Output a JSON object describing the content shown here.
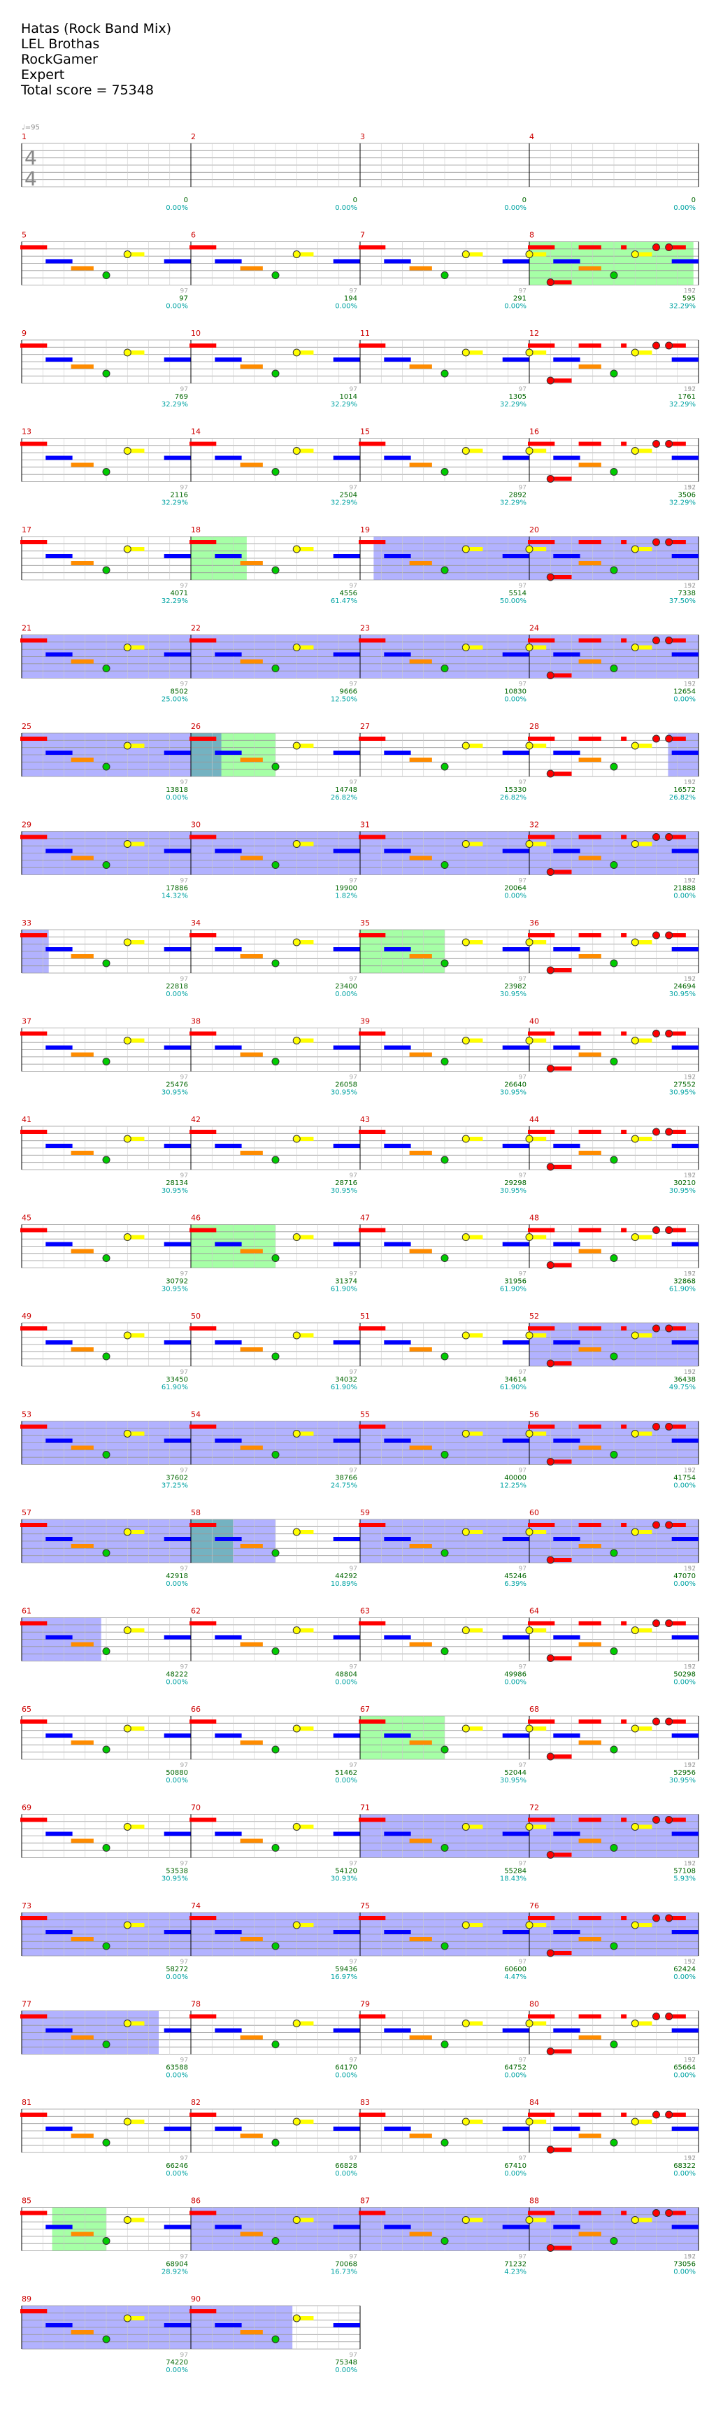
{
  "header": {
    "title": "Hatas (Rock Band Mix)",
    "artist": "LEL Brothas",
    "charter": "RockGamer",
    "difficulty": "Expert",
    "total_score_text": "Total score = 75348"
  },
  "tempo_label": "♩=95",
  "time_signature": [
    "4",
    "4"
  ],
  "label_97": "97",
  "label_152": "152",
  "colors": {
    "measure_number": "#cc0000",
    "score": "#006600",
    "percent": "#00a3a3",
    "lane_red": "#ff0000",
    "lane_yellow": "#ffff00",
    "lane_blue": "#0000ff",
    "lane_orange": "#ff8c00",
    "lane_green": "#00cc00",
    "star_power": "#00ff00",
    "overdrive": "#0000ff"
  },
  "measures": [
    {
      "n": "1",
      "score": "0",
      "pct": "0.00%",
      "sp": [],
      "od": []
    },
    {
      "n": "2",
      "score": "0",
      "pct": "0.00%",
      "sp": [],
      "od": []
    },
    {
      "n": "3",
      "score": "0",
      "pct": "0.00%",
      "sp": [],
      "od": []
    },
    {
      "n": "4",
      "score": "0",
      "pct": "0.00%",
      "sp": [],
      "od": []
    },
    {
      "n": "5",
      "score": "97",
      "pct": "0.00%",
      "sp": [],
      "od": []
    },
    {
      "n": "6",
      "score": "194",
      "pct": "0.00%",
      "sp": [],
      "od": []
    },
    {
      "n": "7",
      "score": "291",
      "pct": "0.00%",
      "sp": [],
      "od": []
    },
    {
      "n": "8",
      "score": "595",
      "pct": "32.29%",
      "sp": [
        [
          0,
          0.97
        ]
      ],
      "od": []
    },
    {
      "n": "9",
      "score": "769",
      "pct": "32.29%",
      "sp": [],
      "od": []
    },
    {
      "n": "10",
      "score": "1014",
      "pct": "32.29%",
      "sp": [],
      "od": []
    },
    {
      "n": "11",
      "score": "1305",
      "pct": "32.29%",
      "sp": [],
      "od": []
    },
    {
      "n": "12",
      "score": "1761",
      "pct": "32.29%",
      "sp": [],
      "od": []
    },
    {
      "n": "13",
      "score": "2116",
      "pct": "32.29%",
      "sp": [],
      "od": []
    },
    {
      "n": "14",
      "score": "2504",
      "pct": "32.29%",
      "sp": [],
      "od": []
    },
    {
      "n": "15",
      "score": "2892",
      "pct": "32.29%",
      "sp": [],
      "od": []
    },
    {
      "n": "16",
      "score": "3506",
      "pct": "32.29%",
      "sp": [],
      "od": []
    },
    {
      "n": "17",
      "score": "4071",
      "pct": "32.29%",
      "sp": [],
      "od": []
    },
    {
      "n": "18",
      "score": "4556",
      "pct": "61.47%",
      "sp": [
        [
          0,
          0.33
        ]
      ],
      "od": []
    },
    {
      "n": "19",
      "score": "5514",
      "pct": "50.00%",
      "sp": [],
      "od": [
        [
          0.08,
          1
        ]
      ]
    },
    {
      "n": "20",
      "score": "7338",
      "pct": "37.50%",
      "sp": [],
      "od": [
        [
          0,
          1
        ]
      ]
    },
    {
      "n": "21",
      "score": "8502",
      "pct": "25.00%",
      "sp": [],
      "od": [
        [
          0,
          1
        ]
      ]
    },
    {
      "n": "22",
      "score": "9666",
      "pct": "12.50%",
      "sp": [],
      "od": [
        [
          0,
          1
        ]
      ]
    },
    {
      "n": "23",
      "score": "10830",
      "pct": "0.00%",
      "sp": [],
      "od": [
        [
          0,
          1
        ]
      ]
    },
    {
      "n": "24",
      "score": "12654",
      "pct": "0.00%",
      "sp": [],
      "od": [
        [
          0,
          1
        ]
      ]
    },
    {
      "n": "25",
      "score": "13818",
      "pct": "0.00%",
      "sp": [],
      "od": [
        [
          0,
          1
        ]
      ]
    },
    {
      "n": "26",
      "score": "14748",
      "pct": "26.82%",
      "sp": [
        [
          0,
          0.5
        ]
      ],
      "od": [
        [
          0,
          0.18
        ]
      ]
    },
    {
      "n": "27",
      "score": "15330",
      "pct": "26.82%",
      "sp": [],
      "od": []
    },
    {
      "n": "28",
      "score": "16572",
      "pct": "26.82%",
      "sp": [],
      "od": [
        [
          0.82,
          1
        ]
      ]
    },
    {
      "n": "29",
      "score": "17886",
      "pct": "14.32%",
      "sp": [],
      "od": [
        [
          0,
          1
        ]
      ]
    },
    {
      "n": "30",
      "score": "19900",
      "pct": "1.82%",
      "sp": [],
      "od": [
        [
          0,
          1
        ]
      ]
    },
    {
      "n": "31",
      "score": "20064",
      "pct": "0.00%",
      "sp": [],
      "od": [
        [
          0,
          1
        ]
      ]
    },
    {
      "n": "32",
      "score": "21888",
      "pct": "0.00%",
      "sp": [],
      "od": [
        [
          0,
          1
        ]
      ]
    },
    {
      "n": "33",
      "score": "22818",
      "pct": "0.00%",
      "sp": [],
      "od": [
        [
          0,
          0.16
        ]
      ]
    },
    {
      "n": "34",
      "score": "23400",
      "pct": "0.00%",
      "sp": [],
      "od": []
    },
    {
      "n": "35",
      "score": "23982",
      "pct": "30.95%",
      "sp": [
        [
          0,
          0.5
        ]
      ],
      "od": []
    },
    {
      "n": "36",
      "score": "24694",
      "pct": "30.95%",
      "sp": [],
      "od": []
    },
    {
      "n": "37",
      "score": "25476",
      "pct": "30.95%",
      "sp": [],
      "od": []
    },
    {
      "n": "38",
      "score": "26058",
      "pct": "30.95%",
      "sp": [],
      "od": []
    },
    {
      "n": "39",
      "score": "26640",
      "pct": "30.95%",
      "sp": [],
      "od": []
    },
    {
      "n": "40",
      "score": "27552",
      "pct": "30.95%",
      "sp": [],
      "od": []
    },
    {
      "n": "41",
      "score": "28134",
      "pct": "30.95%",
      "sp": [],
      "od": []
    },
    {
      "n": "42",
      "score": "28716",
      "pct": "30.95%",
      "sp": [],
      "od": []
    },
    {
      "n": "43",
      "score": "29298",
      "pct": "30.95%",
      "sp": [],
      "od": []
    },
    {
      "n": "44",
      "score": "30210",
      "pct": "30.95%",
      "sp": [],
      "od": []
    },
    {
      "n": "45",
      "score": "30792",
      "pct": "30.95%",
      "sp": [],
      "od": []
    },
    {
      "n": "46",
      "score": "31374",
      "pct": "61.90%",
      "sp": [
        [
          0,
          0.5
        ]
      ],
      "od": []
    },
    {
      "n": "47",
      "score": "31956",
      "pct": "61.90%",
      "sp": [],
      "od": []
    },
    {
      "n": "48",
      "score": "32868",
      "pct": "61.90%",
      "sp": [],
      "od": []
    },
    {
      "n": "49",
      "score": "33450",
      "pct": "61.90%",
      "sp": [],
      "od": []
    },
    {
      "n": "50",
      "score": "34032",
      "pct": "61.90%",
      "sp": [],
      "od": []
    },
    {
      "n": "51",
      "score": "34614",
      "pct": "61.90%",
      "sp": [],
      "od": []
    },
    {
      "n": "52",
      "score": "36438",
      "pct": "49.75%",
      "sp": [],
      "od": [
        [
          0,
          1
        ]
      ]
    },
    {
      "n": "53",
      "score": "37602",
      "pct": "37.25%",
      "sp": [],
      "od": [
        [
          0,
          1
        ]
      ]
    },
    {
      "n": "54",
      "score": "38766",
      "pct": "24.75%",
      "sp": [],
      "od": [
        [
          0,
          1
        ]
      ]
    },
    {
      "n": "55",
      "score": "40000",
      "pct": "12.25%",
      "sp": [],
      "od": [
        [
          0,
          1
        ]
      ]
    },
    {
      "n": "56",
      "score": "41754",
      "pct": "0.00%",
      "sp": [],
      "od": [
        [
          0,
          1
        ]
      ]
    },
    {
      "n": "57",
      "score": "42918",
      "pct": "0.00%",
      "sp": [],
      "od": [
        [
          0,
          1
        ]
      ]
    },
    {
      "n": "58",
      "score": "44292",
      "pct": "10.89%",
      "sp": [
        [
          0,
          0.25
        ]
      ],
      "od": [
        [
          0,
          0.5
        ]
      ]
    },
    {
      "n": "59",
      "score": "45246",
      "pct": "6.39%",
      "sp": [],
      "od": [
        [
          0,
          1
        ]
      ]
    },
    {
      "n": "60",
      "score": "47070",
      "pct": "0.00%",
      "sp": [],
      "od": [
        [
          0,
          1
        ]
      ]
    },
    {
      "n": "61",
      "score": "48222",
      "pct": "0.00%",
      "sp": [],
      "od": [
        [
          0,
          0.47
        ]
      ]
    },
    {
      "n": "62",
      "score": "48804",
      "pct": "0.00%",
      "sp": [],
      "od": []
    },
    {
      "n": "63",
      "score": "49986",
      "pct": "0.00%",
      "sp": [],
      "od": []
    },
    {
      "n": "64",
      "score": "50298",
      "pct": "0.00%",
      "sp": [],
      "od": []
    },
    {
      "n": "65",
      "score": "50880",
      "pct": "0.00%",
      "sp": [],
      "od": []
    },
    {
      "n": "66",
      "score": "51462",
      "pct": "0.00%",
      "sp": [],
      "od": []
    },
    {
      "n": "67",
      "score": "52044",
      "pct": "30.95%",
      "sp": [
        [
          0,
          0.5
        ]
      ],
      "od": []
    },
    {
      "n": "68",
      "score": "52956",
      "pct": "30.95%",
      "sp": [],
      "od": []
    },
    {
      "n": "69",
      "score": "53538",
      "pct": "30.95%",
      "sp": [],
      "od": []
    },
    {
      "n": "70",
      "score": "54120",
      "pct": "30.93%",
      "sp": [],
      "od": []
    },
    {
      "n": "71",
      "score": "55284",
      "pct": "18.43%",
      "sp": [],
      "od": [
        [
          0,
          1
        ]
      ]
    },
    {
      "n": "72",
      "score": "57108",
      "pct": "5.93%",
      "sp": [],
      "od": [
        [
          0,
          1
        ]
      ]
    },
    {
      "n": "73",
      "score": "58272",
      "pct": "0.00%",
      "sp": [],
      "od": [
        [
          0,
          1
        ]
      ]
    },
    {
      "n": "74",
      "score": "59436",
      "pct": "16.97%",
      "sp": [],
      "od": [
        [
          0,
          1
        ]
      ]
    },
    {
      "n": "75",
      "score": "60600",
      "pct": "4.47%",
      "sp": [],
      "od": [
        [
          0,
          1
        ]
      ]
    },
    {
      "n": "76",
      "score": "62424",
      "pct": "0.00%",
      "sp": [],
      "od": [
        [
          0,
          1
        ]
      ]
    },
    {
      "n": "77",
      "score": "63588",
      "pct": "0.00%",
      "sp": [],
      "od": [
        [
          0,
          0.81
        ]
      ]
    },
    {
      "n": "78",
      "score": "64170",
      "pct": "0.00%",
      "sp": [],
      "od": []
    },
    {
      "n": "79",
      "score": "64752",
      "pct": "0.00%",
      "sp": [],
      "od": []
    },
    {
      "n": "80",
      "score": "65664",
      "pct": "0.00%",
      "sp": [],
      "od": []
    },
    {
      "n": "81",
      "score": "66246",
      "pct": "0.00%",
      "sp": [],
      "od": []
    },
    {
      "n": "82",
      "score": "66828",
      "pct": "0.00%",
      "sp": [],
      "od": []
    },
    {
      "n": "83",
      "score": "67410",
      "pct": "0.00%",
      "sp": [],
      "od": []
    },
    {
      "n": "84",
      "score": "68322",
      "pct": "0.00%",
      "sp": [],
      "od": []
    },
    {
      "n": "85",
      "score": "68904",
      "pct": "28.92%",
      "sp": [
        [
          0.18,
          0.5
        ]
      ],
      "od": []
    },
    {
      "n": "86",
      "score": "70068",
      "pct": "16.73%",
      "sp": [],
      "od": [
        [
          0,
          1
        ]
      ]
    },
    {
      "n": "87",
      "score": "71232",
      "pct": "4.23%",
      "sp": [],
      "od": [
        [
          0,
          1
        ]
      ]
    },
    {
      "n": "88",
      "score": "73056",
      "pct": "0.00%",
      "sp": [],
      "od": [
        [
          0,
          1
        ]
      ]
    },
    {
      "n": "89",
      "score": "74220",
      "pct": "0.00%",
      "sp": [],
      "od": [
        [
          0,
          1
        ]
      ]
    },
    {
      "n": "90",
      "score": "75348",
      "pct": "0.00%",
      "sp": [],
      "od": [
        [
          0,
          0.6
        ]
      ]
    }
  ],
  "patterns": {
    "A": [
      {
        "lane": 0,
        "beat": 0,
        "sustain": 0.6
      },
      {
        "lane": 2,
        "beat": 0.6,
        "sustain": 0.6
      },
      {
        "lane": 3,
        "beat": 1.2,
        "sustain": 0.5
      },
      {
        "lane": 4,
        "beat": 2,
        "sustain": 0,
        "ball": true
      },
      {
        "lane": 1,
        "beat": 2.5,
        "sustain": 0.4,
        "ball": true
      },
      {
        "lane": 2,
        "beat": 3.4,
        "sustain": 0.6
      }
    ],
    "B": [
      {
        "lane": 0,
        "beat": 0,
        "sustain": 0.6
      },
      {
        "lane": 2,
        "beat": 0.6,
        "sustain": 0.6
      },
      {
        "lane": 3,
        "beat": 1.2,
        "sustain": 0.5
      },
      {
        "lane": 4,
        "beat": 2,
        "sustain": 0,
        "ball": true
      },
      {
        "lane": 1,
        "beat": 2.5,
        "sustain": 0.4,
        "ball": true
      },
      {
        "lane": 2,
        "beat": 3.4,
        "sustain": 0.6
      }
    ],
    "C": [
      {
        "lane": 1,
        "beat": 0,
        "sustain": 0.4,
        "ball": true
      },
      {
        "lane": 5,
        "beat": 0.5,
        "sustain": 0.5,
        "ball": true
      },
      {
        "lane": 0,
        "beat": 1.2,
        "sustain": 0.5
      },
      {
        "lane": 0,
        "beat": 2.2,
        "sustain": 0
      },
      {
        "lane": 0,
        "beat": 3,
        "sustain": 0,
        "ball": true
      },
      {
        "lane": 0,
        "beat": 3.3,
        "sustain": 0.4,
        "ball": true
      }
    ]
  }
}
